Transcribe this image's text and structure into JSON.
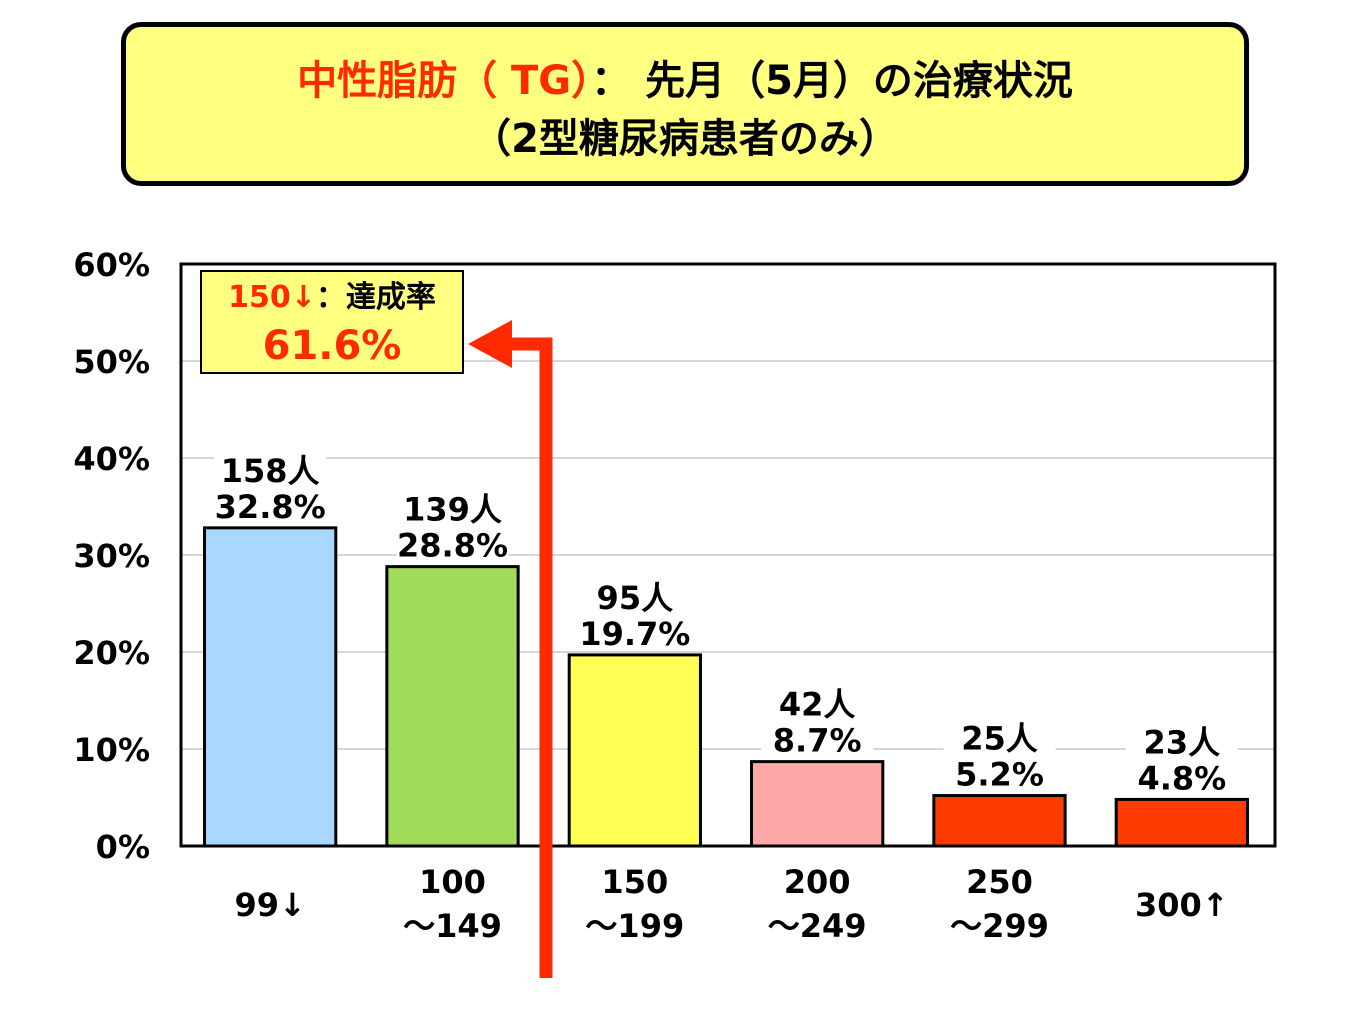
{
  "title": {
    "line1_red": "中性脂肪（ TG）",
    "line1_rest": "： 先月（5月）の治療状況",
    "line2": "（2型糖尿病患者のみ）"
  },
  "annotation": {
    "label_red": "150↓",
    "label_rest": "：達成率",
    "value": "61.6%"
  },
  "colors": {
    "title_bg": "#ffff80",
    "accent_red": "#ff2a00",
    "arrow": "#ff2a00"
  },
  "chart_data": {
    "type": "bar",
    "ylim": [
      0,
      60
    ],
    "yticks": [
      "0%",
      "10%",
      "20%",
      "30%",
      "40%",
      "50%",
      "60%"
    ],
    "grid": true,
    "categories": [
      [
        "99↓"
      ],
      [
        "100",
        "～149"
      ],
      [
        "150",
        "～199"
      ],
      [
        "200",
        "～249"
      ],
      [
        "250",
        "～299"
      ],
      [
        "300↑"
      ]
    ],
    "values": [
      32.8,
      28.8,
      19.7,
      8.7,
      5.2,
      4.8
    ],
    "counts": [
      "158人",
      "139人",
      "95人",
      "42人",
      "25人",
      "23人"
    ],
    "percent_labels": [
      "32.8%",
      "28.8%",
      "19.7%",
      "8.7%",
      "5.2%",
      "4.8%"
    ],
    "bar_colors": [
      "#a8d8ff",
      "#a0dc5a",
      "#ffff55",
      "#ffa8a8",
      "#ff3c00",
      "#ff3c00"
    ]
  }
}
